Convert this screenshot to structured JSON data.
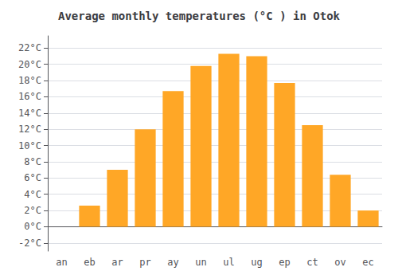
{
  "chart_data": {
    "type": "bar",
    "title": "Average monthly temperatures (°C ) in Otok",
    "categories": [
      "an",
      "eb",
      "ar",
      "pr",
      "ay",
      "un",
      "ul",
      "ug",
      "ep",
      "ct",
      "ov",
      "ec"
    ],
    "values": [
      0.0,
      2.6,
      7.0,
      12.0,
      16.7,
      19.8,
      21.3,
      21.0,
      17.7,
      12.5,
      6.4,
      2.0
    ],
    "color": "#FFA726",
    "ylim": [
      -3,
      23.5
    ],
    "yticks": [
      {
        "value": -2,
        "label": "-2°C"
      },
      {
        "value": 0,
        "label": "0°C"
      },
      {
        "value": 2,
        "label": "2°C"
      },
      {
        "value": 4,
        "label": "4°C"
      },
      {
        "value": 6,
        "label": "6°C"
      },
      {
        "value": 8,
        "label": "8°C"
      },
      {
        "value": 10,
        "label": "10°C"
      },
      {
        "value": 12,
        "label": "12°C"
      },
      {
        "value": 14,
        "label": "14°C"
      },
      {
        "value": 16,
        "label": "16°C"
      },
      {
        "value": 18,
        "label": "18°C"
      },
      {
        "value": 20,
        "label": "20°C"
      },
      {
        "value": 22,
        "label": "22°C"
      }
    ],
    "grid": true
  }
}
